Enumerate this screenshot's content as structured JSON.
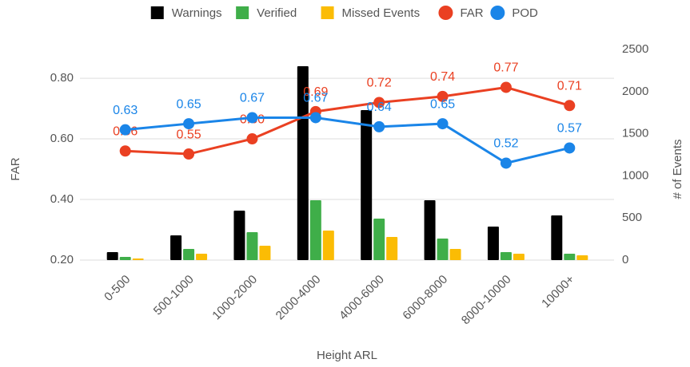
{
  "chart_data": {
    "type": "bar-line",
    "x_label": "Height ARL",
    "y_label": "FAR",
    "y2_label": "# of Events",
    "categories": [
      "0-500",
      "500-1000",
      "1000-2000",
      "2000-4000",
      "4000-6000",
      "6000-8000",
      "8000-10000",
      "10000+"
    ],
    "series": [
      {
        "name": "Warnings",
        "type": "bar",
        "axis": "y2",
        "color": "#000000",
        "values": [
          95,
          294,
          587,
          2301,
          1780,
          710,
          398,
          530
        ]
      },
      {
        "name": "Verified",
        "type": "bar",
        "axis": "y2",
        "color": "#3fae49",
        "values": [
          38,
          133,
          331,
          710,
          492,
          256,
          95,
          76
        ]
      },
      {
        "name": "Missed Events",
        "type": "bar",
        "axis": "y2",
        "color": "#fbbc04",
        "values": [
          19,
          76,
          170,
          350,
          275,
          133,
          76,
          57
        ]
      },
      {
        "name": "FAR",
        "type": "line",
        "axis": "y",
        "color": "#ea4022",
        "values": [
          0.56,
          0.55,
          0.6,
          0.69,
          0.72,
          0.74,
          0.77,
          0.71
        ],
        "value_labels": [
          "0.56",
          "0.55",
          "0.60",
          "0.69",
          "0.72",
          "0.74",
          "0.77",
          "0.71"
        ]
      },
      {
        "name": "POD",
        "type": "line",
        "axis": "y",
        "color": "#1a85e8",
        "values": [
          0.63,
          0.65,
          0.67,
          0.67,
          0.64,
          0.65,
          0.52,
          0.57
        ],
        "value_labels": [
          "0.63",
          "0.65",
          "0.67",
          "0.67",
          "0.64",
          "0.65",
          "0.52",
          "0.57"
        ]
      }
    ],
    "ylim": [
      0.2,
      0.895
    ],
    "yticks": [
      {
        "value": 0.2,
        "label": "0.20"
      },
      {
        "value": 0.4,
        "label": "0.40"
      },
      {
        "value": 0.6,
        "label": "0.60"
      },
      {
        "value": 0.8,
        "label": "0.80"
      }
    ],
    "y2lim": [
      0,
      2500
    ],
    "y2ticks": [
      0,
      500,
      1000,
      1500,
      2000,
      2500
    ],
    "grid": true,
    "legend": "top"
  }
}
